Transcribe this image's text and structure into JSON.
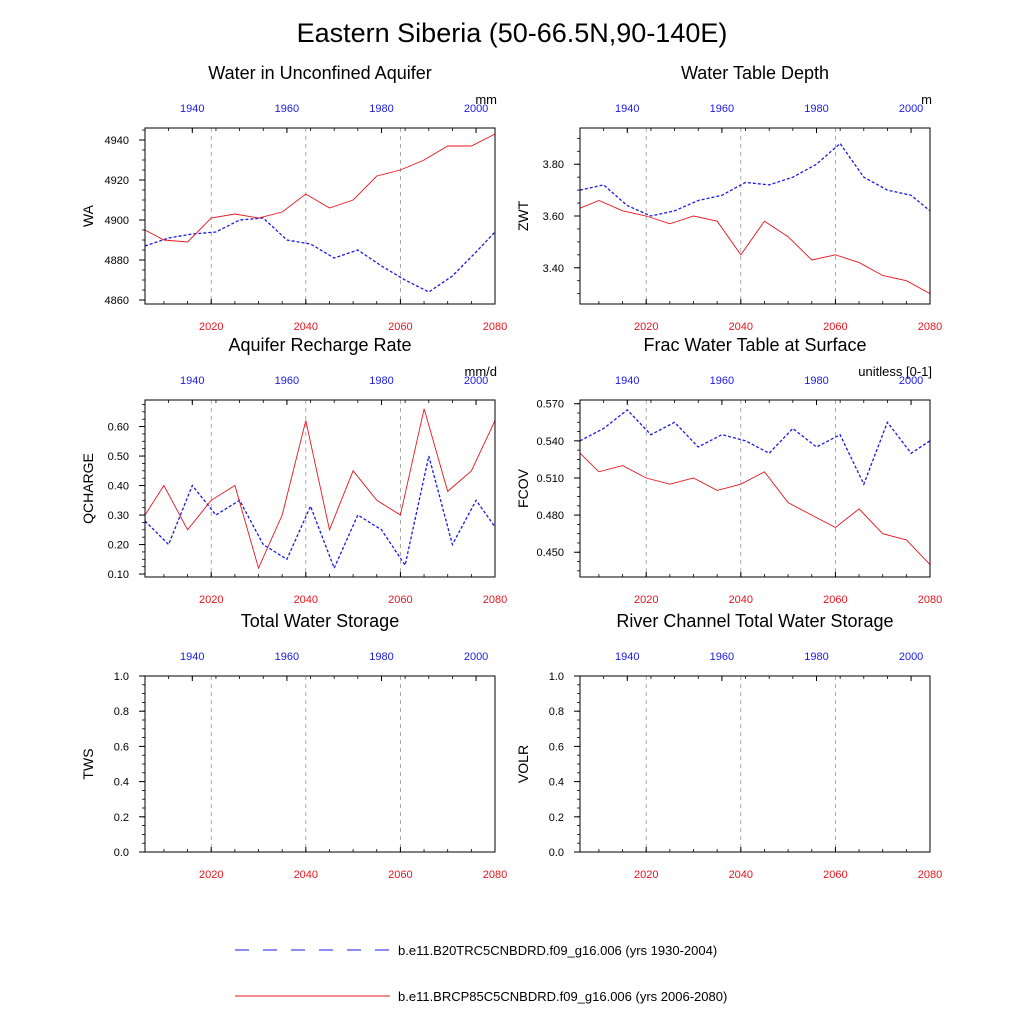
{
  "title": "Eastern Siberia (50-66.5N,90-140E)",
  "colors": {
    "historical": "#1a1ae6",
    "future": "#e8161e",
    "grid": "#999999"
  },
  "legend": {
    "items": [
      {
        "label": "b.e11.B20TRC5CNBDRD.f09_g16.006 (yrs 1930-2004)",
        "color": "#1a1ae6",
        "style": "dashed"
      },
      {
        "label": "b.e11.BRCP85C5CNBDRD.f09_g16.006 (yrs 2006-2080)",
        "color": "#e8161e",
        "style": "solid"
      }
    ]
  },
  "chart_data": [
    {
      "type": "line",
      "title": "Water in Unconfined Aquifer",
      "ylabel": "WA",
      "units": "mm",
      "xlim_bottom": [
        2006,
        2080
      ],
      "xlim_top": [
        1930,
        2004
      ],
      "bottom_ticks": [
        "2020",
        "2040",
        "2060",
        "2080"
      ],
      "top_ticks": [
        "1940",
        "1960",
        "1980",
        "2000"
      ],
      "ylim": [
        4858,
        4946
      ],
      "yticks": [
        "4860",
        "4880",
        "4900",
        "4920",
        "4940"
      ],
      "series": [
        {
          "name": "b.e11.B20TRC5CNBDRD.f09_g16.006 (yrs 1930-2004)",
          "x": [
            1930,
            1935,
            1940,
            1945,
            1950,
            1955,
            1960,
            1965,
            1970,
            1975,
            1980,
            1985,
            1990,
            1995,
            2000,
            2004
          ],
          "values": [
            4887,
            4891,
            4893,
            4894,
            4900,
            4901,
            4890,
            4888,
            4881,
            4885,
            4877,
            4870,
            4864,
            4872,
            4884,
            4894
          ]
        },
        {
          "name": "b.e11.BRCP85C5CNBDRD.f09_g16.006 (yrs 2006-2080)",
          "x": [
            2006,
            2010,
            2015,
            2020,
            2025,
            2030,
            2035,
            2040,
            2045,
            2050,
            2055,
            2060,
            2065,
            2070,
            2075,
            2080
          ],
          "values": [
            4895,
            4890,
            4889,
            4901,
            4903,
            4901,
            4904,
            4913,
            4906,
            4910,
            4922,
            4925,
            4930,
            4937,
            4937,
            4943
          ]
        }
      ]
    },
    {
      "type": "line",
      "title": "Water Table Depth",
      "ylabel": "ZWT",
      "units": "m",
      "xlim_bottom": [
        2006,
        2080
      ],
      "xlim_top": [
        1930,
        2004
      ],
      "bottom_ticks": [
        "2020",
        "2040",
        "2060",
        "2080"
      ],
      "top_ticks": [
        "1940",
        "1960",
        "1980",
        "2000"
      ],
      "ylim": [
        3.26,
        3.94
      ],
      "yticks": [
        "3.40",
        "3.60",
        "3.80"
      ],
      "series": [
        {
          "name": "b.e11.B20TRC5CNBDRD.f09_g16.006 (yrs 1930-2004)",
          "x": [
            1930,
            1935,
            1940,
            1945,
            1950,
            1955,
            1960,
            1965,
            1970,
            1975,
            1980,
            1985,
            1990,
            1995,
            2000,
            2004
          ],
          "values": [
            3.7,
            3.72,
            3.64,
            3.6,
            3.62,
            3.66,
            3.68,
            3.73,
            3.72,
            3.75,
            3.8,
            3.88,
            3.75,
            3.7,
            3.68,
            3.62
          ]
        },
        {
          "name": "b.e11.BRCP85C5CNBDRD.f09_g16.006 (yrs 2006-2080)",
          "x": [
            2006,
            2010,
            2015,
            2020,
            2025,
            2030,
            2035,
            2040,
            2045,
            2050,
            2055,
            2060,
            2065,
            2070,
            2075,
            2080
          ],
          "values": [
            3.63,
            3.66,
            3.62,
            3.6,
            3.57,
            3.6,
            3.58,
            3.45,
            3.58,
            3.52,
            3.43,
            3.45,
            3.42,
            3.37,
            3.35,
            3.3
          ]
        }
      ]
    },
    {
      "type": "line",
      "title": "Aquifer Recharge Rate",
      "ylabel": "QCHARGE",
      "units": "mm/d",
      "xlim_bottom": [
        2006,
        2080
      ],
      "xlim_top": [
        1930,
        2004
      ],
      "bottom_ticks": [
        "2020",
        "2040",
        "2060",
        "2080"
      ],
      "top_ticks": [
        "1940",
        "1960",
        "1980",
        "2000"
      ],
      "ylim": [
        0.09,
        0.69
      ],
      "yticks": [
        "0.10",
        "0.20",
        "0.30",
        "0.40",
        "0.50",
        "0.60"
      ],
      "series": [
        {
          "name": "b.e11.B20TRC5CNBDRD.f09_g16.006 (yrs 1930-2004)",
          "x": [
            1930,
            1935,
            1940,
            1945,
            1950,
            1955,
            1960,
            1965,
            1970,
            1975,
            1980,
            1985,
            1990,
            1995,
            2000,
            2004
          ],
          "values": [
            0.28,
            0.2,
            0.4,
            0.3,
            0.35,
            0.2,
            0.15,
            0.33,
            0.12,
            0.3,
            0.25,
            0.13,
            0.5,
            0.2,
            0.35,
            0.26
          ]
        },
        {
          "name": "b.e11.BRCP85C5CNBDRD.f09_g16.006 (yrs 2006-2080)",
          "x": [
            2006,
            2010,
            2015,
            2020,
            2025,
            2030,
            2035,
            2040,
            2045,
            2050,
            2055,
            2060,
            2065,
            2070,
            2075,
            2080
          ],
          "values": [
            0.3,
            0.4,
            0.25,
            0.35,
            0.4,
            0.12,
            0.3,
            0.62,
            0.25,
            0.45,
            0.35,
            0.3,
            0.66,
            0.38,
            0.45,
            0.62
          ]
        }
      ]
    },
    {
      "type": "line",
      "title": "Frac Water Table at Surface",
      "ylabel": "FCOV",
      "units": "unitless [0-1]",
      "xlim_bottom": [
        2006,
        2080
      ],
      "xlim_top": [
        1930,
        2004
      ],
      "bottom_ticks": [
        "2020",
        "2040",
        "2060",
        "2080"
      ],
      "top_ticks": [
        "1940",
        "1960",
        "1980",
        "2000"
      ],
      "ylim": [
        0.43,
        0.573
      ],
      "yticks": [
        "0.450",
        "0.480",
        "0.510",
        "0.540",
        "0.570"
      ],
      "series": [
        {
          "name": "b.e11.B20TRC5CNBDRD.f09_g16.006 (yrs 1930-2004)",
          "x": [
            1930,
            1935,
            1940,
            1945,
            1950,
            1955,
            1960,
            1965,
            1970,
            1975,
            1980,
            1985,
            1990,
            1995,
            2000,
            2004
          ],
          "values": [
            0.54,
            0.55,
            0.565,
            0.545,
            0.555,
            0.535,
            0.545,
            0.54,
            0.53,
            0.55,
            0.535,
            0.545,
            0.505,
            0.555,
            0.53,
            0.54
          ]
        },
        {
          "name": "b.e11.BRCP85C5CNBDRD.f09_g16.006 (yrs 2006-2080)",
          "x": [
            2006,
            2010,
            2015,
            2020,
            2025,
            2030,
            2035,
            2040,
            2045,
            2050,
            2055,
            2060,
            2065,
            2070,
            2075,
            2080
          ],
          "values": [
            0.53,
            0.515,
            0.52,
            0.51,
            0.505,
            0.51,
            0.5,
            0.505,
            0.515,
            0.49,
            0.48,
            0.47,
            0.485,
            0.465,
            0.46,
            0.44
          ]
        }
      ]
    },
    {
      "type": "line",
      "title": "Total Water Storage",
      "ylabel": "TWS",
      "units": "",
      "xlim_bottom": [
        2006,
        2080
      ],
      "xlim_top": [
        1930,
        2004
      ],
      "bottom_ticks": [
        "2020",
        "2040",
        "2060",
        "2080"
      ],
      "top_ticks": [
        "1940",
        "1960",
        "1980",
        "2000"
      ],
      "ylim": [
        0.0,
        1.0
      ],
      "yticks": [
        "0.0",
        "0.2",
        "0.4",
        "0.6",
        "0.8",
        "1.0"
      ],
      "series": []
    },
    {
      "type": "line",
      "title": "River Channel Total Water Storage",
      "ylabel": "VOLR",
      "units": "",
      "xlim_bottom": [
        2006,
        2080
      ],
      "xlim_top": [
        1930,
        2004
      ],
      "bottom_ticks": [
        "2020",
        "2040",
        "2060",
        "2080"
      ],
      "top_ticks": [
        "1940",
        "1960",
        "1980",
        "2000"
      ],
      "ylim": [
        0.0,
        1.0
      ],
      "yticks": [
        "0.0",
        "0.2",
        "0.4",
        "0.6",
        "0.8",
        "1.0"
      ],
      "series": []
    }
  ]
}
